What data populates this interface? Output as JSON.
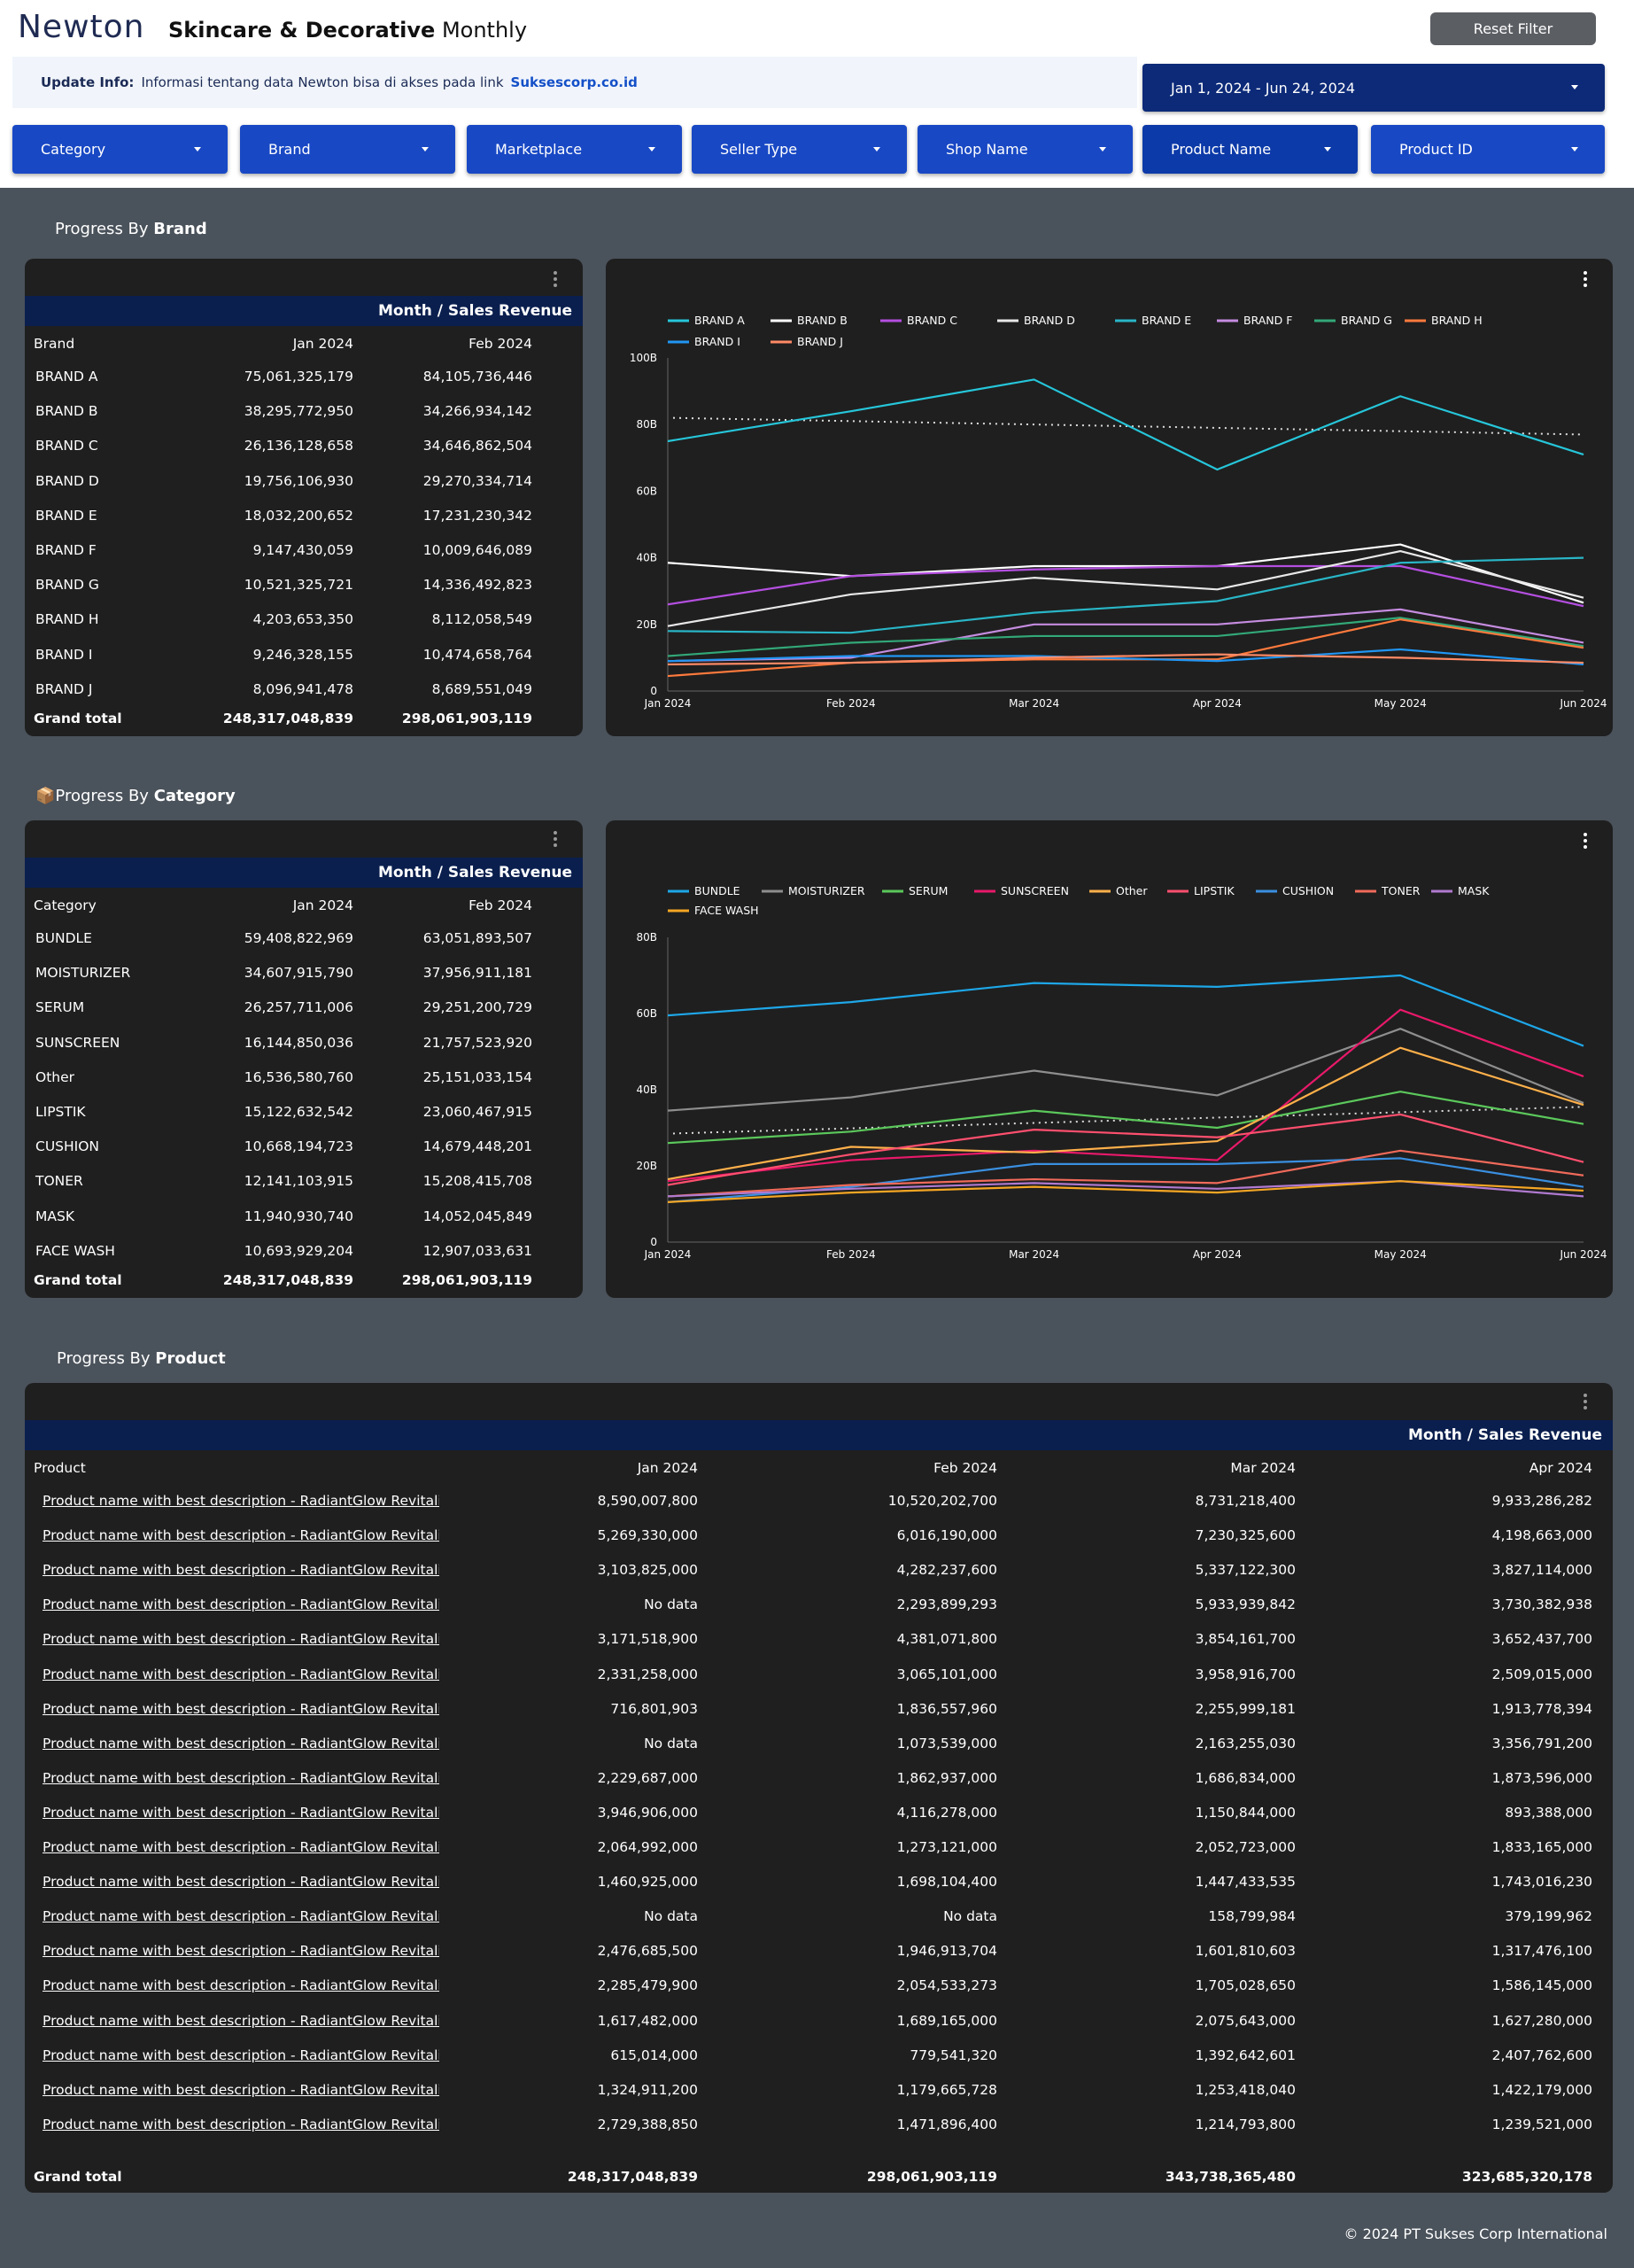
{
  "header": {
    "logo": "Newton",
    "title_bold": "Skincare & Decorative",
    "title_rest": "Monthly",
    "reset_label": "Reset Filter",
    "update_label": "Update Info:",
    "update_text": "Informasi tentang data Newton bisa di akses pada link",
    "update_link": "Suksescorp.co.id",
    "date_range": "Jan 1, 2024 - Jun 24, 2024"
  },
  "filters": [
    "Category",
    "Brand",
    "Marketplace",
    "Seller Type",
    "Shop Name",
    "Product Name",
    "Product ID"
  ],
  "sections": {
    "brand": {
      "prefix": "Progress By",
      "bold": "Brand"
    },
    "category": {
      "icon": "📦",
      "prefix": "Progress By",
      "bold": "Category"
    },
    "product": {
      "prefix": "Progress By",
      "bold": "Product"
    }
  },
  "brand_table": {
    "band": "Month / Sales Revenue",
    "headers": [
      "Brand",
      "Jan 2024",
      "Feb 2024"
    ],
    "rows": [
      [
        "BRAND A",
        "75,061,325,179",
        "84,105,736,446"
      ],
      [
        "BRAND B",
        "38,295,772,950",
        "34,266,934,142"
      ],
      [
        "BRAND C",
        "26,136,128,658",
        "34,646,862,504"
      ],
      [
        "BRAND D",
        "19,756,106,930",
        "29,270,334,714"
      ],
      [
        "BRAND E",
        "18,032,200,652",
        "17,231,230,342"
      ],
      [
        "BRAND F",
        "9,147,430,059",
        "10,009,646,089"
      ],
      [
        "BRAND G",
        "10,521,325,721",
        "14,336,492,823"
      ],
      [
        "BRAND H",
        "4,203,653,350",
        "8,112,058,549"
      ],
      [
        "BRAND I",
        "9,246,328,155",
        "10,474,658,764"
      ],
      [
        "BRAND J",
        "8,096,941,478",
        "8,689,551,049"
      ]
    ],
    "total": [
      "Grand total",
      "248,317,048,839",
      "298,061,903,119"
    ]
  },
  "category_table": {
    "band": "Month / Sales Revenue",
    "headers": [
      "Category",
      "Jan 2024",
      "Feb 2024"
    ],
    "rows": [
      [
        "BUNDLE",
        "59,408,822,969",
        "63,051,893,507"
      ],
      [
        "MOISTURIZER",
        "34,607,915,790",
        "37,956,911,181"
      ],
      [
        "SERUM",
        "26,257,711,006",
        "29,251,200,729"
      ],
      [
        "SUNSCREEN",
        "16,144,850,036",
        "21,757,523,920"
      ],
      [
        "Other",
        "16,536,580,760",
        "25,151,033,154"
      ],
      [
        "LIPSTIK",
        "15,122,632,542",
        "23,060,467,915"
      ],
      [
        "CUSHION",
        "10,668,194,723",
        "14,679,448,201"
      ],
      [
        "TONER",
        "12,141,103,915",
        "15,208,415,708"
      ],
      [
        "MASK",
        "11,940,930,740",
        "14,052,045,849"
      ],
      [
        "FACE WASH",
        "10,693,929,204",
        "12,907,033,631"
      ]
    ],
    "total": [
      "Grand total",
      "248,317,048,839",
      "298,061,903,119"
    ]
  },
  "product_table": {
    "band": "Month / Sales Revenue",
    "headers": [
      "Product",
      "Jan 2024",
      "Feb 2024",
      "Mar 2024",
      "Apr 2024"
    ],
    "rows": [
      [
        "Product name with best description - RadiantGlow Revitalizing",
        "8,590,007,800",
        "10,520,202,700",
        "8,731,218,400",
        "9,933,286,282"
      ],
      [
        "Product name with best description - RadiantGlow Revitalizing",
        "5,269,330,000",
        "6,016,190,000",
        "7,230,325,600",
        "4,198,663,000"
      ],
      [
        "Product name with best description - RadiantGlow Revitalizing",
        "3,103,825,000",
        "4,282,237,600",
        "5,337,122,300",
        "3,827,114,000"
      ],
      [
        "Product name with best description - RadiantGlow Revitalizing",
        "No data",
        "2,293,899,293",
        "5,933,939,842",
        "3,730,382,938"
      ],
      [
        "Product name with best description - RadiantGlow Revitalizing",
        "3,171,518,900",
        "4,381,071,800",
        "3,854,161,700",
        "3,652,437,700"
      ],
      [
        "Product name with best description - RadiantGlow Revitalizing",
        "2,331,258,000",
        "3,065,101,000",
        "3,958,916,700",
        "2,509,015,000"
      ],
      [
        "Product name with best description - RadiantGlow Revitalizing",
        "716,801,903",
        "1,836,557,960",
        "2,255,999,181",
        "1,913,778,394"
      ],
      [
        "Product name with best description - RadiantGlow Revitalizing",
        "No data",
        "1,073,539,000",
        "2,163,255,030",
        "3,356,791,200"
      ],
      [
        "Product name with best description - RadiantGlow Revitalizing",
        "2,229,687,000",
        "1,862,937,000",
        "1,686,834,000",
        "1,873,596,000"
      ],
      [
        "Product name with best description - RadiantGlow Revitalizing",
        "3,946,906,000",
        "4,116,278,000",
        "1,150,844,000",
        "893,388,000"
      ],
      [
        "Product name with best description - RadiantGlow Revitalizing",
        "2,064,992,000",
        "1,273,121,000",
        "2,052,723,000",
        "1,833,165,000"
      ],
      [
        "Product name with best description - RadiantGlow Revitalizing",
        "1,460,925,000",
        "1,698,104,400",
        "1,447,433,535",
        "1,743,016,230"
      ],
      [
        "Product name with best description - RadiantGlow Revitalizing",
        "No data",
        "No data",
        "158,799,984",
        "379,199,962"
      ],
      [
        "Product name with best description - RadiantGlow Revitalizing",
        "2,476,685,500",
        "1,946,913,704",
        "1,601,810,603",
        "1,317,476,100"
      ],
      [
        "Product name with best description - RadiantGlow Revitalizing",
        "2,285,479,900",
        "2,054,533,273",
        "1,705,028,650",
        "1,586,145,000"
      ],
      [
        "Product name with best description - RadiantGlow Revitalizing",
        "1,617,482,000",
        "1,689,165,000",
        "2,075,643,000",
        "1,627,280,000"
      ],
      [
        "Product name with best description - RadiantGlow Revitalizing",
        "615,014,000",
        "779,541,320",
        "1,392,642,601",
        "2,407,762,600"
      ],
      [
        "Product name with best description - RadiantGlow Revitalizing",
        "1,324,911,200",
        "1,179,665,728",
        "1,253,418,040",
        "1,422,179,000"
      ],
      [
        "Product name with best description - RadiantGlow Revitalizing",
        "2,729,388,850",
        "1,471,896,400",
        "1,214,793,800",
        "1,239,521,000"
      ]
    ],
    "total": [
      "Grand total",
      "248,317,048,839",
      "298,061,903,119",
      "343,738,365,480",
      "323,685,320,178"
    ]
  },
  "footer": "© 2024 PT Sukses Corp International",
  "chart_data": [
    {
      "type": "line",
      "title": "Progress By Brand",
      "categories": [
        "Jan 2024",
        "Feb 2024",
        "Mar 2024",
        "Apr 2024",
        "May 2024",
        "Jun 2024"
      ],
      "ylim": [
        0,
        100
      ],
      "yticks": [
        "0",
        "20B",
        "40B",
        "60B",
        "80B",
        "100B"
      ],
      "trendline": [
        82,
        77
      ],
      "series": [
        {
          "name": "BRAND A",
          "color": "#26c6da",
          "values": [
            75,
            84,
            93.5,
            66.5,
            88.5,
            71
          ]
        },
        {
          "name": "BRAND B",
          "color": "#ffffff",
          "values": [
            38.5,
            34.5,
            37.5,
            37.5,
            44,
            26.5
          ]
        },
        {
          "name": "BRAND C",
          "color": "#b44fe0",
          "values": [
            26,
            34.5,
            36.5,
            37.5,
            37.5,
            25.5
          ]
        },
        {
          "name": "BRAND D",
          "color": "#e8e8e8",
          "values": [
            19.5,
            29,
            34,
            30.5,
            42,
            28
          ]
        },
        {
          "name": "BRAND E",
          "color": "#29b6c7",
          "values": [
            18,
            17.5,
            23.5,
            27,
            38.5,
            40
          ]
        },
        {
          "name": "BRAND F",
          "color": "#c58ce0",
          "values": [
            9,
            10,
            20,
            20,
            24.5,
            14.5
          ]
        },
        {
          "name": "BRAND G",
          "color": "#32a878",
          "values": [
            10.5,
            14.5,
            16.5,
            16.5,
            22,
            13.5
          ]
        },
        {
          "name": "BRAND H",
          "color": "#ff7a3d",
          "values": [
            4.5,
            8.5,
            9.5,
            9.5,
            21.5,
            13
          ]
        },
        {
          "name": "BRAND I",
          "color": "#2196f3",
          "values": [
            9,
            10.5,
            10.5,
            9,
            12.5,
            8
          ]
        },
        {
          "name": "BRAND J",
          "color": "#ff8a65",
          "values": [
            8,
            8.5,
            10,
            11,
            10,
            8.5
          ]
        }
      ]
    },
    {
      "type": "line",
      "title": "Progress By Category",
      "categories": [
        "Jan 2024",
        "Feb 2024",
        "Mar 2024",
        "Apr 2024",
        "May 2024",
        "Jun 2024"
      ],
      "ylim": [
        0,
        80
      ],
      "yticks": [
        "0",
        "20B",
        "40B",
        "60B",
        "80B"
      ],
      "trendline": [
        28.5,
        35.5
      ],
      "series": [
        {
          "name": "BUNDLE",
          "color": "#1ea7e8",
          "values": [
            59.5,
            63,
            68,
            67,
            70,
            51.5
          ]
        },
        {
          "name": "MOISTURIZER",
          "color": "#8e8e8e",
          "values": [
            34.5,
            38,
            45,
            38.5,
            56,
            36.5
          ]
        },
        {
          "name": "SERUM",
          "color": "#5bc85b",
          "values": [
            26,
            29,
            34.5,
            30,
            39.5,
            31
          ]
        },
        {
          "name": "SUNSCREEN",
          "color": "#e8196a",
          "values": [
            16,
            21.5,
            24,
            21.5,
            61,
            43.5
          ]
        },
        {
          "name": "Other",
          "color": "#ffb04a",
          "values": [
            16.5,
            25,
            23.5,
            26.5,
            51,
            36
          ]
        },
        {
          "name": "LIPSTIK",
          "color": "#ff4f6e",
          "values": [
            15,
            23,
            29.5,
            27.5,
            33.5,
            21
          ]
        },
        {
          "name": "CUSHION",
          "color": "#3a8fe0",
          "values": [
            10.5,
            14.5,
            20.5,
            20.5,
            22,
            14.5
          ]
        },
        {
          "name": "TONER",
          "color": "#f06a5a",
          "values": [
            12,
            15,
            16.5,
            15.5,
            24,
            17.5
          ]
        },
        {
          "name": "MASK",
          "color": "#b07ad0",
          "values": [
            12,
            14,
            15.5,
            14,
            16,
            12
          ]
        },
        {
          "name": "FACE WASH",
          "color": "#f5a623",
          "values": [
            10.5,
            13,
            14.5,
            13,
            16,
            13.5
          ]
        }
      ]
    }
  ]
}
